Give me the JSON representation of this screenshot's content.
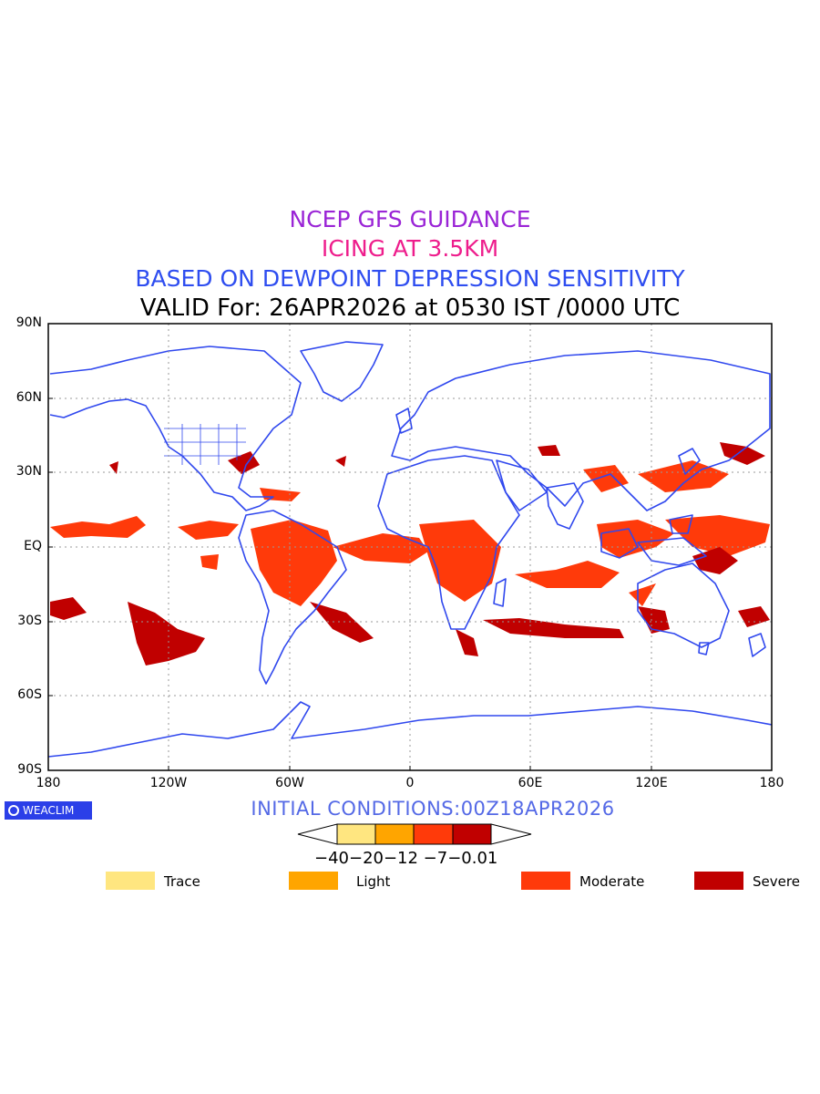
{
  "header": {
    "line1": "NCEP GFS GUIDANCE",
    "line2": "ICING AT 3.5KM",
    "line3": "BASED ON DEWPOINT DEPRESSION SENSITIVITY",
    "line4": "VALID For: 26APR2026 at 0530 IST /0000 UTC"
  },
  "axes": {
    "lat_labels": [
      "90N",
      "60N",
      "30N",
      "EQ",
      "30S",
      "60S",
      "90S"
    ],
    "lon_labels": [
      "180",
      "120W",
      "60W",
      "0",
      "60E",
      "120E",
      "180"
    ]
  },
  "logo": {
    "text": "WEACLIM"
  },
  "initial_conditions": "INITIAL CONDITIONS:00Z18APR2026",
  "colorbar": {
    "values_text": "−40−20−12 −7−0.01",
    "colors": [
      "#ffe680",
      "#ffa500",
      "#ff3a0a",
      "#c00000"
    ]
  },
  "legend": [
    {
      "label": "Trace",
      "color": "#ffe680"
    },
    {
      "label": "Light",
      "color": "#ffa500"
    },
    {
      "label": "Moderate",
      "color": "#ff3a0a"
    },
    {
      "label": "Severe",
      "color": "#c00000"
    }
  ],
  "map_colors": {
    "coastline": "#3048ee",
    "moderate": "#ff3a0a",
    "severe": "#c00000"
  }
}
